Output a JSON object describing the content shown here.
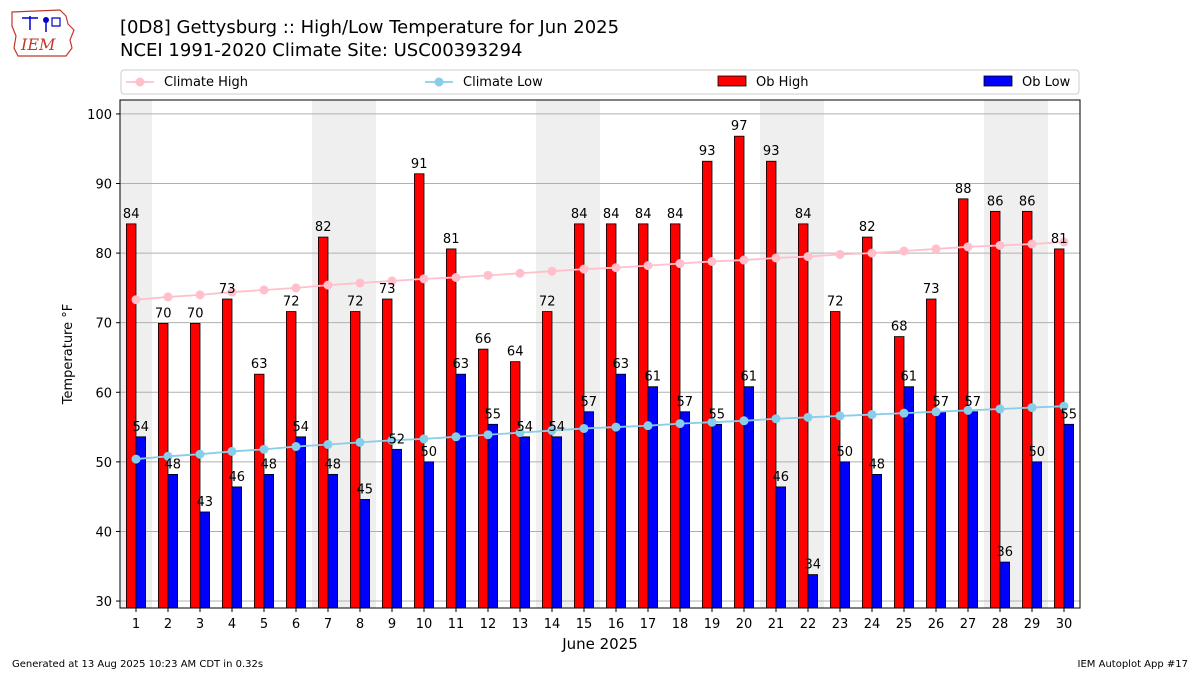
{
  "header": {
    "logo_text": "IEM",
    "title_line1": "[0D8] Gettysburg :: High/Low Temperature for Jun 2025",
    "title_line2": "NCEI 1991-2020 Climate Site: USC00393294"
  },
  "footer": {
    "left": "Generated at 13 Aug 2025 10:23 AM CDT in 0.32s",
    "right": "IEM Autoplot App #17"
  },
  "colors": {
    "ob_high": "#ff0000",
    "ob_low": "#0000ff",
    "climate_high": "#ffc0cb",
    "climate_low": "#87ceeb",
    "weekend_band": "#efefef",
    "grid": "#b0b0b0"
  },
  "chart_data": {
    "type": "bar",
    "xlabel": "June 2025",
    "ylabel": "Temperature °F",
    "ylim": [
      29,
      102
    ],
    "yticks": [
      30,
      40,
      50,
      60,
      70,
      80,
      90,
      100
    ],
    "grid": "horizontal",
    "legend_placement": "top",
    "legend": [
      "Climate High",
      "Climate Low",
      "Ob High",
      "Ob Low"
    ],
    "categories": [
      "1",
      "2",
      "3",
      "4",
      "5",
      "6",
      "7",
      "8",
      "9",
      "10",
      "11",
      "12",
      "13",
      "14",
      "15",
      "16",
      "17",
      "18",
      "19",
      "20",
      "21",
      "22",
      "23",
      "24",
      "25",
      "26",
      "27",
      "28",
      "29",
      "30"
    ],
    "shaded_days": [
      1,
      7,
      8,
      14,
      15,
      21,
      22,
      28,
      29
    ],
    "series": [
      {
        "name": "Ob High",
        "kind": "bar",
        "values": [
          84,
          70,
          70,
          73,
          63,
          72,
          82,
          72,
          73,
          91,
          81,
          66,
          64,
          72,
          84,
          84,
          84,
          84,
          93,
          97,
          93,
          84,
          72,
          82,
          68,
          73,
          88,
          86,
          86,
          81
        ],
        "heights": [
          84.2,
          69.9,
          69.9,
          73.4,
          62.6,
          71.6,
          82.3,
          71.6,
          73.4,
          91.4,
          80.6,
          66.2,
          64.4,
          71.6,
          84.2,
          84.2,
          84.2,
          84.2,
          93.2,
          96.8,
          93.2,
          84.2,
          71.6,
          82.3,
          68.0,
          73.4,
          87.8,
          86.0,
          86.0,
          80.6
        ]
      },
      {
        "name": "Ob Low",
        "kind": "bar",
        "values": [
          54,
          48,
          43,
          46,
          48,
          54,
          48,
          45,
          52,
          50,
          63,
          55,
          54,
          54,
          57,
          63,
          61,
          57,
          55,
          61,
          46,
          34,
          50,
          48,
          61,
          57,
          57,
          36,
          50,
          55
        ],
        "heights": [
          53.6,
          48.2,
          42.8,
          46.4,
          48.2,
          53.6,
          48.2,
          44.6,
          51.8,
          50.0,
          62.6,
          55.4,
          53.6,
          53.6,
          57.2,
          62.6,
          60.8,
          57.2,
          55.4,
          60.8,
          46.4,
          33.8,
          50.0,
          48.2,
          60.8,
          57.2,
          57.2,
          35.6,
          50.0,
          55.4
        ]
      },
      {
        "name": "Climate High",
        "kind": "line",
        "values": [
          73.3,
          73.7,
          74.0,
          74.4,
          74.7,
          75.0,
          75.4,
          75.7,
          76.0,
          76.3,
          76.5,
          76.8,
          77.1,
          77.4,
          77.7,
          77.9,
          78.2,
          78.5,
          78.8,
          79.0,
          79.3,
          79.5,
          79.8,
          80.0,
          80.3,
          80.6,
          80.9,
          81.1,
          81.3,
          81.6
        ]
      },
      {
        "name": "Climate Low",
        "kind": "line",
        "values": [
          50.4,
          50.8,
          51.1,
          51.5,
          51.8,
          52.2,
          52.5,
          52.8,
          53.1,
          53.3,
          53.6,
          53.9,
          54.2,
          54.5,
          54.8,
          55.0,
          55.2,
          55.5,
          55.7,
          55.9,
          56.2,
          56.4,
          56.6,
          56.8,
          57.0,
          57.2,
          57.4,
          57.6,
          57.8,
          58.0
        ]
      }
    ]
  }
}
